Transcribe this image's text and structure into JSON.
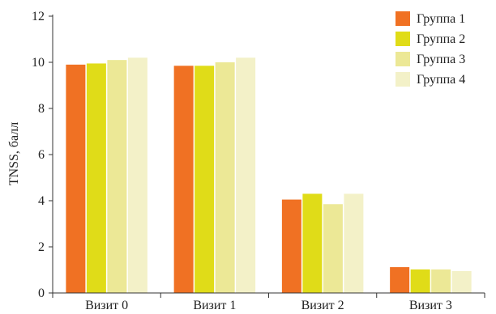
{
  "chart_data": {
    "type": "bar",
    "title": "",
    "xlabel": "",
    "ylabel": "TNSS, балл",
    "ylim": [
      0,
      12
    ],
    "yticks": [
      0,
      2,
      4,
      6,
      8,
      10,
      12
    ],
    "grid": false,
    "legend_position": "top-right",
    "categories": [
      "Визит 0",
      "Визит 1",
      "Визит 2",
      "Визит 3"
    ],
    "series": [
      {
        "name": "Группа 1",
        "color": "#f07123",
        "values": [
          9.9,
          9.85,
          4.05,
          1.12
        ]
      },
      {
        "name": "Группа 2",
        "color": "#e0dc18",
        "values": [
          9.95,
          9.85,
          4.3,
          1.02
        ]
      },
      {
        "name": "Группа 3",
        "color": "#ece896",
        "values": [
          10.1,
          10.0,
          3.85,
          1.02
        ]
      },
      {
        "name": "Группа 4",
        "color": "#f3f1c8",
        "values": [
          10.2,
          10.2,
          4.3,
          0.95
        ]
      }
    ]
  }
}
